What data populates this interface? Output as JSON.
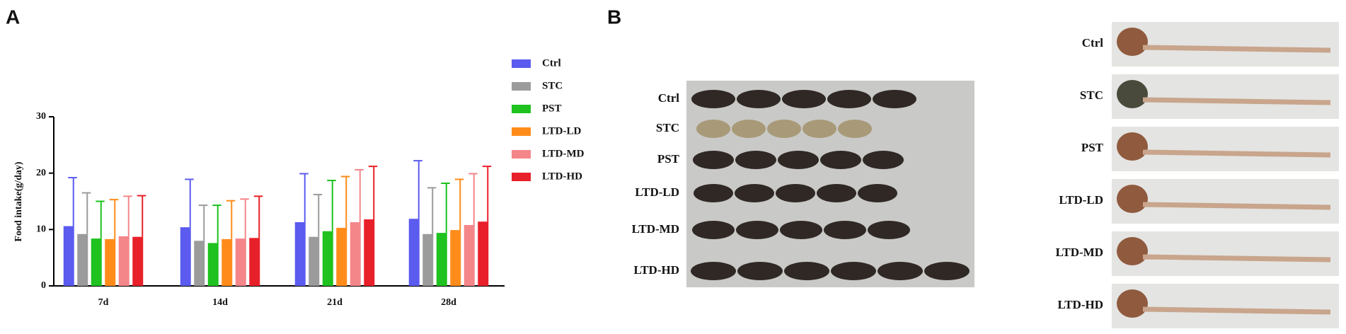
{
  "chart_data": {
    "type": "bar",
    "ylabel": "Food intake(g/day)",
    "categories": [
      "7d",
      "14d",
      "21d",
      "28d"
    ],
    "series": [
      {
        "name": "Ctrl",
        "color": "#5b5bef",
        "values": [
          10.6,
          10.4,
          11.3,
          11.9
        ],
        "errors": [
          8.6,
          8.5,
          8.6,
          10.3
        ]
      },
      {
        "name": "STC",
        "color": "#9b9b9b",
        "values": [
          9.2,
          8.0,
          8.7,
          9.2
        ],
        "errors": [
          7.3,
          6.3,
          7.5,
          8.2
        ]
      },
      {
        "name": "PST",
        "color": "#1fc21f",
        "values": [
          8.4,
          7.6,
          9.7,
          9.4
        ],
        "errors": [
          6.6,
          6.7,
          9.0,
          8.8
        ]
      },
      {
        "name": "LTD-LD",
        "color": "#ff8c1a",
        "values": [
          8.3,
          8.3,
          10.3,
          9.9
        ],
        "errors": [
          7.0,
          6.8,
          9.1,
          9.0
        ]
      },
      {
        "name": "LTD-MD",
        "color": "#f4868a",
        "values": [
          8.8,
          8.4,
          11.3,
          10.8
        ],
        "errors": [
          7.1,
          7.0,
          9.3,
          9.1
        ]
      },
      {
        "name": "LTD-HD",
        "color": "#e8202a",
        "values": [
          8.7,
          8.5,
          11.8,
          11.4
        ],
        "errors": [
          7.3,
          7.4,
          9.4,
          9.8
        ]
      }
    ],
    "ylim": [
      0,
      30
    ],
    "yticks": [
      0,
      10,
      20,
      30
    ],
    "legend": "right"
  },
  "panel_labels": [
    "A",
    "B"
  ],
  "feces_rows": [
    "Ctrl",
    "STC",
    "PST",
    "LTD-LD",
    "LTD-MD",
    "LTD-HD"
  ],
  "colon_rows": [
    "Ctrl",
    "STC",
    "PST",
    "LTD-LD",
    "LTD-MD",
    "LTD-HD"
  ]
}
